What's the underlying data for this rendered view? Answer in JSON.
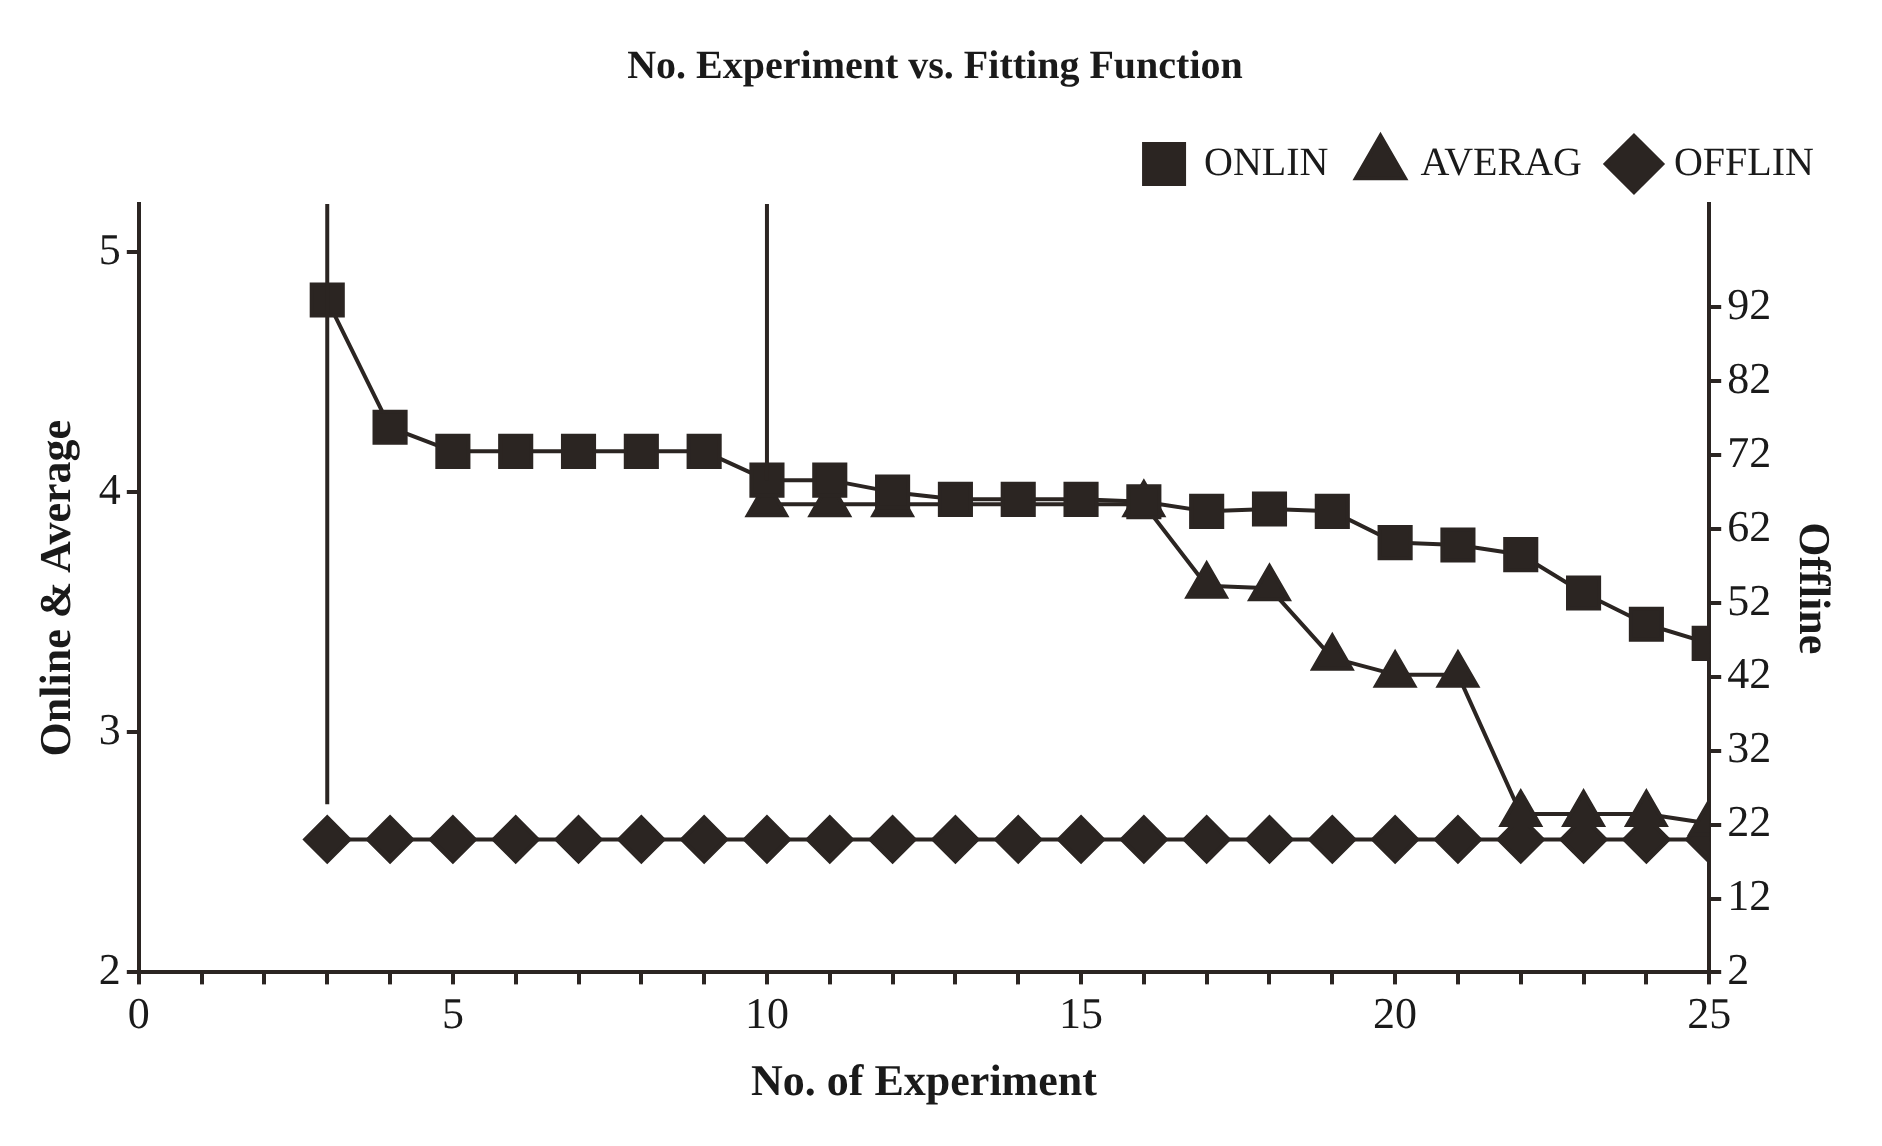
{
  "chart_data": {
    "type": "line",
    "title": "No. Experiment vs. Fitting Function",
    "xlabel": "No. of Experiment",
    "ylabel": "Online & Average",
    "y2label": "Offline",
    "x": [
      3,
      4,
      5,
      6,
      7,
      8,
      9,
      10,
      11,
      12,
      13,
      14,
      15,
      16,
      17,
      18,
      19,
      20,
      21,
      22,
      23,
      24,
      25
    ],
    "series": [
      {
        "name": "ONLIN",
        "color": "#2b2522",
        "marker": "square",
        "errors": [
          [
            2.7,
            5.2
          ],
          null,
          null,
          null,
          null,
          null,
          null,
          [
            4.05,
            5.2
          ],
          null,
          null,
          null,
          null,
          null,
          null,
          null,
          null,
          null,
          null,
          null,
          null,
          null,
          null,
          null
        ],
        "values": [
          4.8,
          4.27,
          4.17,
          4.17,
          4.17,
          4.17,
          4.17,
          4.05,
          4.05,
          4.0,
          3.97,
          3.97,
          3.97,
          3.96,
          3.92,
          3.93,
          3.92,
          3.79,
          3.78,
          3.74,
          3.58,
          3.45,
          3.37
        ]
      },
      {
        "name": "AVERAG",
        "color": "#2b2522",
        "marker": "triangle",
        "values": [
          null,
          null,
          null,
          null,
          null,
          null,
          null,
          3.95,
          3.95,
          3.95,
          null,
          null,
          null,
          3.95,
          3.61,
          3.6,
          3.31,
          3.24,
          3.24,
          2.66,
          2.66,
          2.66,
          2.62
        ]
      },
      {
        "name": "OFFLIN",
        "color": "#2b2522",
        "marker": "diamond",
        "axis": "y2",
        "values": [
          20,
          20,
          20,
          20,
          20,
          20,
          20,
          20,
          20,
          20,
          20,
          20,
          20,
          20,
          20,
          20,
          20,
          20,
          20,
          20,
          20,
          20,
          20
        ]
      }
    ],
    "xlim": [
      0,
      25
    ],
    "xticks": [
      0,
      {
        "value": 1,
        "label": null
      },
      {
        "value": 2,
        "label": null
      },
      {
        "value": 3,
        "label": null
      },
      {
        "value": 4,
        "label": null
      },
      5,
      {
        "value": 6,
        "label": null
      },
      {
        "value": 7,
        "label": null
      },
      {
        "value": 8,
        "label": null
      },
      {
        "value": 9,
        "label": null
      },
      10,
      {
        "value": 11,
        "label": null
      },
      {
        "value": 12,
        "label": null
      },
      {
        "value": 13,
        "label": null
      },
      {
        "value": 14,
        "label": null
      },
      15,
      {
        "value": 16,
        "label": null
      },
      {
        "value": 17,
        "label": null
      },
      {
        "value": 18,
        "label": null
      },
      {
        "value": 19,
        "label": null
      },
      20,
      {
        "value": 21,
        "label": null
      },
      {
        "value": 22,
        "label": null
      },
      {
        "value": 23,
        "label": null
      },
      {
        "value": 24,
        "label": null
      },
      25
    ],
    "ylim": [
      2,
      5.2
    ],
    "yticks": [
      2,
      3,
      4,
      5
    ],
    "y2lim": [
      2,
      106
    ],
    "y2ticks": [
      2,
      12,
      22,
      32,
      42,
      52,
      62,
      72,
      82,
      92
    ],
    "grid": false,
    "legend": "top right",
    "line_style": "solid"
  }
}
